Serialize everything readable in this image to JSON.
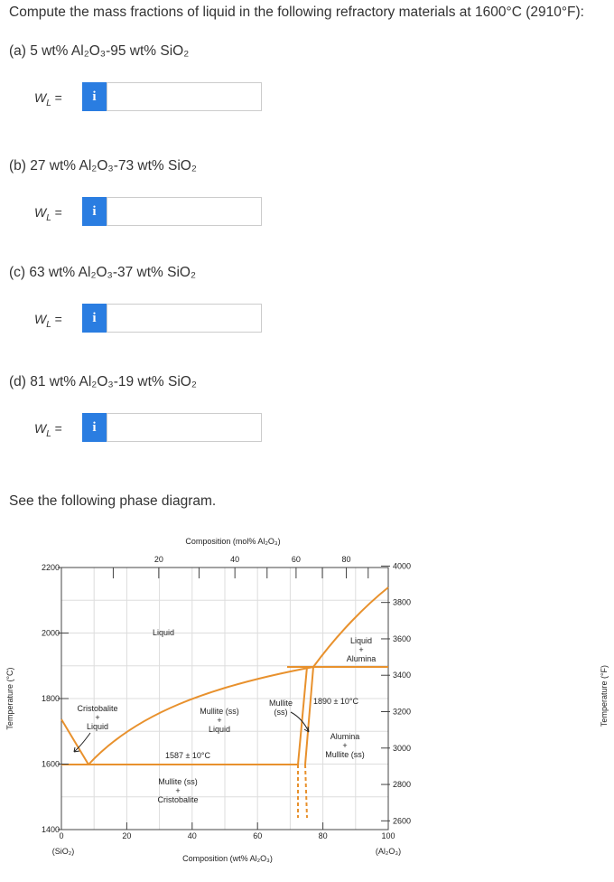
{
  "question": "Compute the mass fractions of liquid in the following refractory materials at 1600°C (2910°F):",
  "parts": [
    {
      "label": "(a) 5 wt% Al₂O₃-95 wt% SiO₂",
      "variable": "W",
      "subscript": "L",
      "equals": "=",
      "info": "i"
    },
    {
      "label": "(b) 27 wt% Al₂O₃-73 wt% SiO₂",
      "variable": "W",
      "subscript": "L",
      "equals": "=",
      "info": "i"
    },
    {
      "label": "(c) 63 wt% Al₂O₃-37 wt% SiO₂",
      "variable": "W",
      "subscript": "L",
      "equals": "=",
      "info": "i"
    },
    {
      "label": "(d) 81 wt% Al₂O₃-19 wt% SiO₂",
      "variable": "W",
      "subscript": "L",
      "equals": "=",
      "info": "i"
    }
  ],
  "see_diagram": "See the following phase diagram.",
  "diagram": {
    "top_axis_title": "Composition (mol% Al₂O₃)",
    "top_ticks": [
      20,
      40,
      60,
      80
    ],
    "bottom_axis_title": "Composition (wt% Al₂O₃)",
    "bottom_ticks": [
      0,
      20,
      40,
      60,
      80,
      100
    ],
    "left_end_label": "(SiO₂)",
    "right_end_label": "(Al₂O₃)",
    "left_axis_title": "Temperature (°C)",
    "left_ticks": [
      2200,
      2000,
      1800,
      1600,
      1400
    ],
    "right_axis_title": "Temperature (°F)",
    "right_ticks": [
      4000,
      3800,
      3600,
      3400,
      3200,
      3000,
      2800,
      2600
    ],
    "regions": {
      "liquid": "Liquid",
      "liquid_alumina": [
        "Liquid",
        "+",
        "Alumina"
      ],
      "peritectic": "1890 ± 10°C",
      "cristobalite_liquid": [
        "Cristobalite",
        "+",
        "Liquid"
      ],
      "mullite_liquid": [
        "Mullite (ss)",
        "+",
        "Liquid"
      ],
      "mullite": [
        "Mullite",
        "(ss)"
      ],
      "eutectic": "1587 ± 10°C",
      "mullite_cristobalite": [
        "Mullite (ss)",
        "+",
        "Cristobalite"
      ],
      "alumina_mullite": [
        "Alumina",
        "+",
        "Mullite (ss)"
      ]
    }
  }
}
